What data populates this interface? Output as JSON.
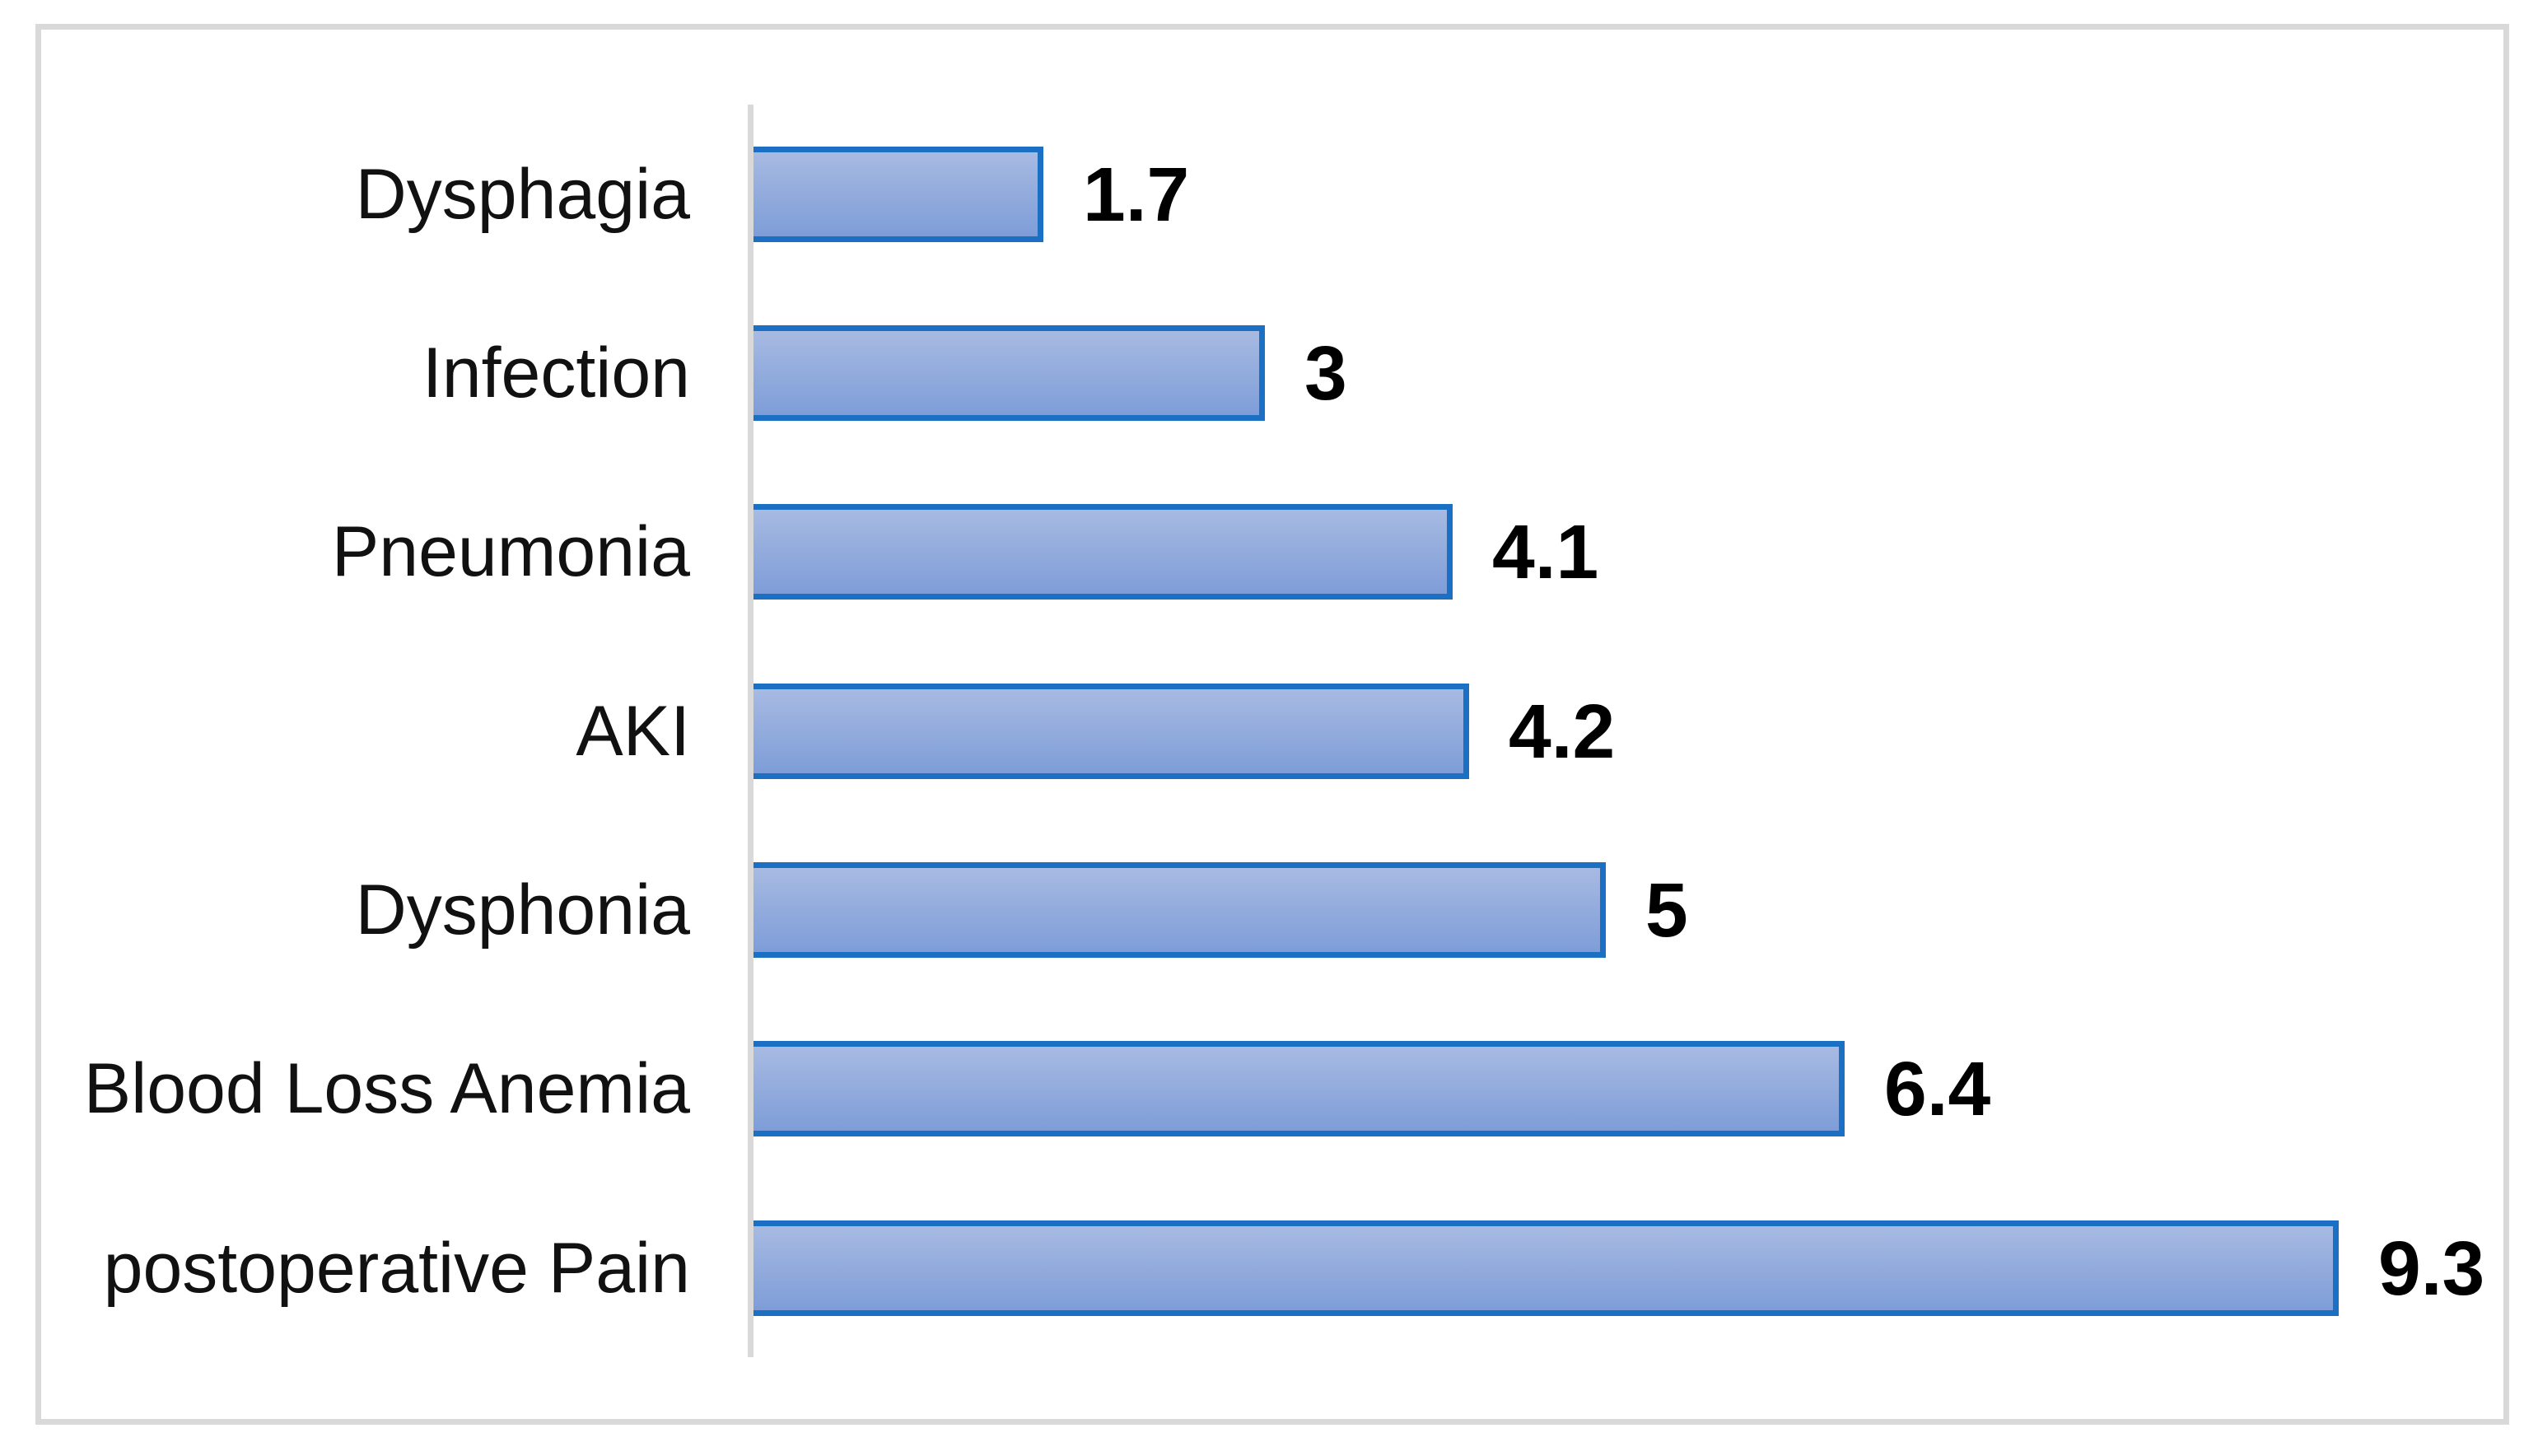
{
  "figure": {
    "background_color": "#ffffff",
    "frame_border_color": "#d9d9d9"
  },
  "chart_data": {
    "type": "bar",
    "orientation": "horizontal",
    "title": "",
    "xlabel": "",
    "ylabel": "",
    "categories": [
      "Dysphagia",
      "Infection",
      "Pneumonia",
      "AKI",
      "Dysphonia",
      "Blood Loss Anemia",
      "postoperative Pain"
    ],
    "values": [
      1.7,
      3,
      4.1,
      4.2,
      5,
      6.4,
      9.3
    ],
    "value_labels": [
      "1.7",
      "3",
      "4.1",
      "4.2",
      "5",
      "6.4",
      "9.3"
    ],
    "xlim": [
      0,
      10
    ],
    "grid": false,
    "legend": false,
    "axis_line_color": "#d9d9d9",
    "bar_border_color": "#1b70c4",
    "bar_fill_top_color": "#a7bae2",
    "bar_fill_bottom_color": "#7e9dd8",
    "category_label_color": "#111111",
    "value_label_color": "#000000"
  }
}
